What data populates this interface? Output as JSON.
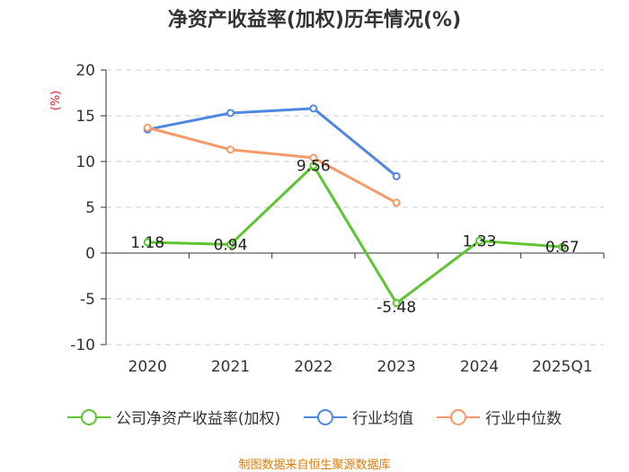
{
  "title": "净资产收益率(加权)历年情况(%)",
  "source": "制图数据来自恒生聚源数据库",
  "chart_data": {
    "type": "line",
    "ylabel": "(%)",
    "xlabel": "",
    "ylim": [
      -10,
      20
    ],
    "yticks": [
      20,
      15,
      10,
      5,
      0,
      -5,
      -10
    ],
    "categories": [
      "2020",
      "2021",
      "2022",
      "2023",
      "2024",
      "2025Q1"
    ],
    "grid": true,
    "legend_position": "bottom",
    "series": [
      {
        "name": "公司净资产收益率(加权)",
        "color": "#5dc531",
        "values": [
          1.18,
          0.94,
          9.56,
          -5.48,
          1.33,
          0.67
        ],
        "labels": true
      },
      {
        "name": "行业均值",
        "color": "#4f86e0",
        "values": [
          13.5,
          15.3,
          15.8,
          8.4,
          null,
          null
        ],
        "labels": false
      },
      {
        "name": "行业中位数",
        "color": "#f59b6a",
        "values": [
          13.7,
          11.3,
          10.4,
          5.5,
          null,
          null
        ],
        "labels": false
      }
    ]
  }
}
